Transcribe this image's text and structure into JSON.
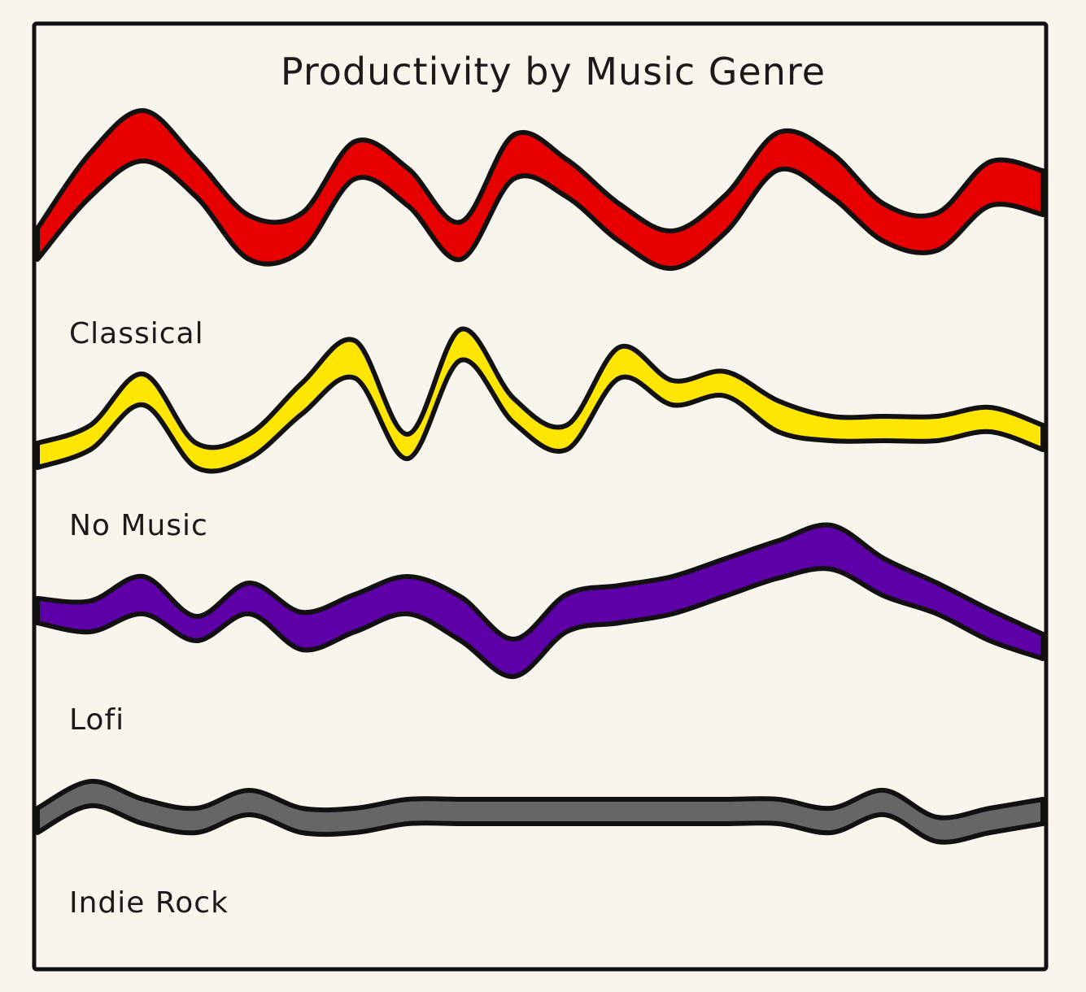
{
  "chart_data": {
    "type": "area",
    "title": "Productivity by Music Genre",
    "xlabel": "",
    "ylabel": "",
    "grid": false,
    "legend": "none",
    "series": [
      {
        "name": "Classical",
        "color": "#e60000",
        "values": [
          1,
          8,
          12,
          8,
          1,
          2,
          10,
          7,
          1,
          10,
          8,
          3,
          0,
          4,
          11,
          8,
          3,
          2,
          7,
          6
        ],
        "widths": [
          3,
          5,
          6,
          4,
          5,
          4,
          4,
          4,
          4,
          5,
          4,
          4,
          4,
          4,
          4,
          5,
          4,
          4,
          5,
          5
        ]
      },
      {
        "name": "No Music",
        "color": "#ffe600",
        "values": [
          0,
          2,
          7,
          0,
          1,
          6,
          10,
          1,
          12,
          5,
          2,
          10,
          7,
          8,
          4,
          3,
          3,
          3,
          4,
          2
        ],
        "widths": [
          2,
          2,
          3,
          2,
          2,
          3,
          4,
          2,
          3,
          2,
          2,
          3,
          2,
          2,
          3,
          2,
          2,
          2,
          2,
          2
        ]
      },
      {
        "name": "Lofi",
        "color": "#5e00a8",
        "values": [
          4,
          3,
          5,
          2,
          5,
          1,
          3,
          5,
          2,
          -2,
          3,
          4,
          5,
          7,
          9,
          10,
          7,
          5,
          2,
          0
        ],
        "widths": [
          2,
          3,
          4,
          2,
          3,
          4,
          4,
          4,
          5,
          4,
          4,
          4,
          4,
          4,
          4,
          5,
          4,
          3,
          3,
          2
        ]
      },
      {
        "name": "Indie Rock",
        "color": "#666666",
        "values": [
          1,
          4,
          2,
          1,
          3,
          1,
          1,
          2,
          2,
          2,
          2,
          2,
          2,
          2,
          2,
          1,
          3,
          0,
          1,
          2
        ],
        "widths": [
          2,
          2,
          2,
          2,
          2,
          2,
          2,
          2,
          2,
          2,
          2,
          2,
          2,
          2,
          2,
          2,
          2,
          2,
          2,
          2
        ]
      }
    ]
  }
}
